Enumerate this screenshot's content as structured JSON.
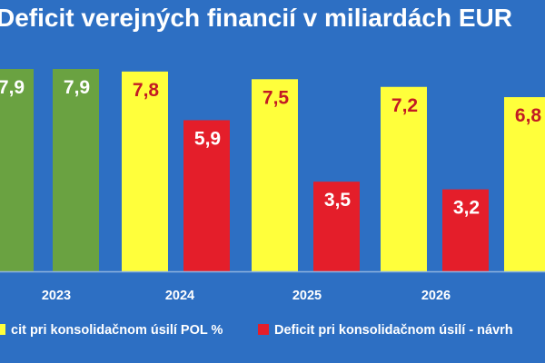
{
  "chart_data": {
    "type": "bar",
    "title": "Deficit verejných financií v miliardách EUR",
    "categories": [
      "2023",
      "2024",
      "2025",
      "2026",
      ""
    ],
    "ylim": [
      0,
      9.5
    ],
    "grid": false,
    "legend_placement": "bottom",
    "bars": [
      {
        "category": "2023",
        "value": 7.9,
        "label": "7,9",
        "color": "#6aa241"
      },
      {
        "category": "2023",
        "value": 7.9,
        "label": "7,9",
        "color": "#6aa241"
      },
      {
        "category": "2024",
        "value": 7.8,
        "label": "7,8",
        "color": "#ffff3b"
      },
      {
        "category": "2024",
        "value": 5.9,
        "label": "5,9",
        "color": "#e41e2a"
      },
      {
        "category": "2025",
        "value": 7.5,
        "label": "7,5",
        "color": "#ffff3b"
      },
      {
        "category": "2025",
        "value": 3.5,
        "label": "3,5",
        "color": "#e41e2a"
      },
      {
        "category": "2026",
        "value": 7.2,
        "label": "7,2",
        "color": "#ffff3b"
      },
      {
        "category": "2026",
        "value": 3.2,
        "label": "3,2",
        "color": "#e41e2a"
      },
      {
        "category": "",
        "value": 6.8,
        "label": "6,8",
        "color": "#ffff3b"
      }
    ],
    "legend": [
      {
        "name": "cit pri konsolidačnom úsilí POL %",
        "color": "#ffff3b"
      },
      {
        "name": "Deficit pri konsolidačnom úsilí - návrh",
        "color": "#e41e2a"
      }
    ]
  },
  "colors": {
    "background": "#2d6fc3",
    "axis_line": "#8fb4e0",
    "dark_label": "#c21b23",
    "light_label": "#ffffff"
  }
}
